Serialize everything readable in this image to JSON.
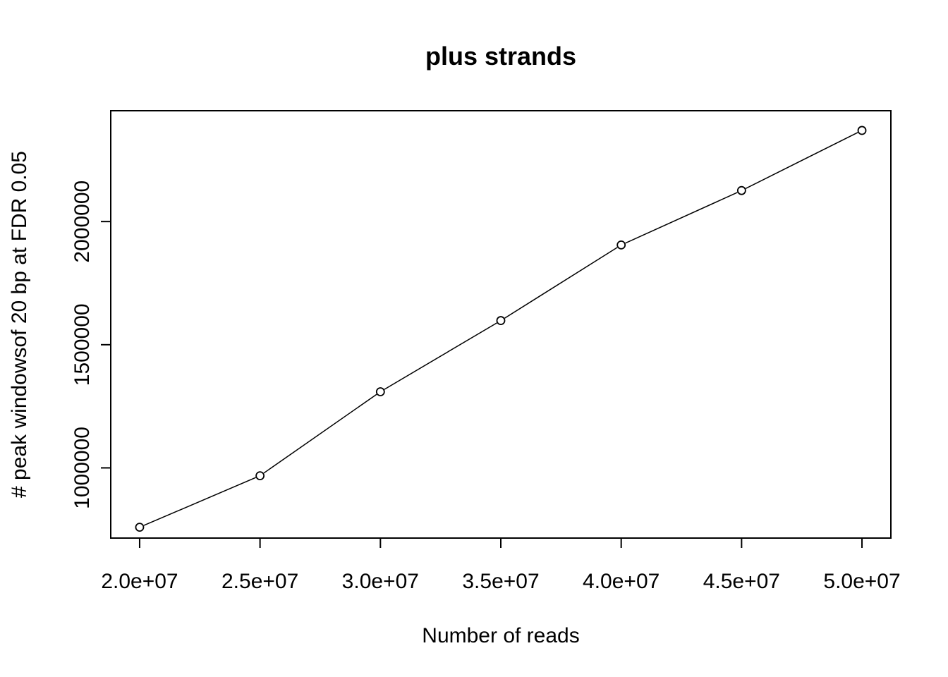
{
  "chart_data": {
    "type": "line",
    "title": "plus strands",
    "xlabel": "Number of reads",
    "ylabel": "# peak windowsof 20 bp at FDR 0.05",
    "x": [
      20000000,
      25000000,
      30000000,
      35000000,
      40000000,
      45000000,
      50000000
    ],
    "series": [
      {
        "values": [
          759000,
          968000,
          1309000,
          1598000,
          1905000,
          2126000,
          2370000
        ]
      }
    ],
    "xlim": [
      18800000,
      51200000
    ],
    "ylim": [
      715000,
      2450000
    ],
    "xticks": [
      20000000,
      25000000,
      30000000,
      35000000,
      40000000,
      45000000,
      50000000
    ],
    "xtick_labels": [
      "2.0e+07",
      "2.5e+07",
      "3.0e+07",
      "3.5e+07",
      "4.0e+07",
      "4.5e+07",
      "5.0e+07"
    ],
    "yticks": [
      1000000,
      1500000,
      2000000
    ],
    "ytick_labels": [
      "1000000",
      "1500000",
      "2000000"
    ],
    "grid": false,
    "marker": "open-circle",
    "line_color": "#000000"
  }
}
